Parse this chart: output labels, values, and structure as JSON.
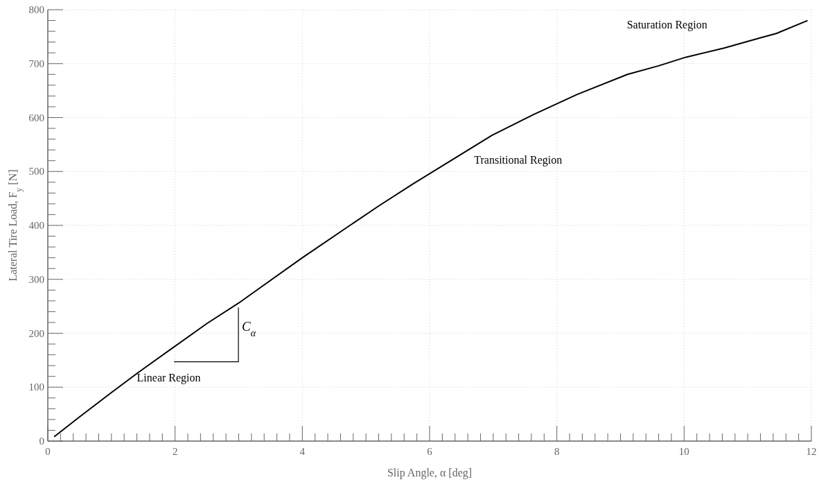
{
  "chart_data": {
    "type": "line",
    "xlabel": "Slip Angle, α [deg]",
    "ylabel": "Lateral Tire Load, F$_{y}$ [N]",
    "x": [
      0.1,
      0.5,
      1.0,
      1.43,
      2.0,
      2.5,
      3.0,
      3.32,
      4.0,
      4.76,
      5.2,
      5.74,
      6.25,
      6.98,
      7.64,
      8.32,
      9.11,
      9.6,
      10.03,
      10.63,
      11.2,
      11.45,
      11.94
    ],
    "series": [
      {
        "color": "#000000",
        "values": [
          8,
          45,
          90,
          128,
          176,
          218,
          256,
          283,
          340,
          401,
          436,
          477,
          514,
          567,
          606,
          643,
          680,
          696,
          712,
          729,
          748,
          756,
          780
        ]
      }
    ],
    "xlim": [
      0,
      12
    ],
    "ylim": [
      0,
      800
    ],
    "xticks": [
      0,
      {
        "value": 0.2,
        "label": null
      },
      {
        "value": 0.4,
        "label": null
      },
      {
        "value": 0.6,
        "label": null
      },
      {
        "value": 0.8,
        "label": null
      },
      {
        "value": 1.0,
        "label": null
      },
      {
        "value": 1.2,
        "label": null
      },
      {
        "value": 1.4,
        "label": null
      },
      {
        "value": 1.6,
        "label": null
      },
      {
        "value": 1.8,
        "label": null
      },
      2,
      {
        "value": 2.2,
        "label": null
      },
      {
        "value": 2.4,
        "label": null
      },
      {
        "value": 2.6,
        "label": null
      },
      {
        "value": 2.8,
        "label": null
      },
      {
        "value": 3.0,
        "label": null
      },
      {
        "value": 3.2,
        "label": null
      },
      {
        "value": 3.4,
        "label": null
      },
      {
        "value": 3.6,
        "label": null
      },
      {
        "value": 3.8,
        "label": null
      },
      4,
      {
        "value": 4.2,
        "label": null
      },
      {
        "value": 4.4,
        "label": null
      },
      {
        "value": 4.6,
        "label": null
      },
      {
        "value": 4.8,
        "label": null
      },
      {
        "value": 5.0,
        "label": null
      },
      {
        "value": 5.2,
        "label": null
      },
      {
        "value": 5.4,
        "label": null
      },
      {
        "value": 5.6,
        "label": null
      },
      {
        "value": 5.8,
        "label": null
      },
      6,
      {
        "value": 6.2,
        "label": null
      },
      {
        "value": 6.4,
        "label": null
      },
      {
        "value": 6.6,
        "label": null
      },
      {
        "value": 6.8,
        "label": null
      },
      {
        "value": 7.0,
        "label": null
      },
      {
        "value": 7.2,
        "label": null
      },
      {
        "value": 7.4,
        "label": null
      },
      {
        "value": 7.6,
        "label": null
      },
      {
        "value": 7.8,
        "label": null
      },
      8,
      {
        "value": 8.2,
        "label": null
      },
      {
        "value": 8.4,
        "label": null
      },
      {
        "value": 8.6,
        "label": null
      },
      {
        "value": 8.8,
        "label": null
      },
      {
        "value": 9.0,
        "label": null
      },
      {
        "value": 9.2,
        "label": null
      },
      {
        "value": 9.4,
        "label": null
      },
      {
        "value": 9.6,
        "label": null
      },
      {
        "value": 9.8,
        "label": null
      },
      10,
      {
        "value": 10.2,
        "label": null
      },
      {
        "value": 10.4,
        "label": null
      },
      {
        "value": 10.6,
        "label": null
      },
      {
        "value": 10.8,
        "label": null
      },
      {
        "value": 11.0,
        "label": null
      },
      {
        "value": 11.2,
        "label": null
      },
      {
        "value": 11.4,
        "label": null
      },
      {
        "value": 11.6,
        "label": null
      },
      {
        "value": 11.8,
        "label": null
      },
      12
    ],
    "yticks": [
      0,
      {
        "value": 20,
        "label": null
      },
      {
        "value": 40,
        "label": null
      },
      {
        "value": 60,
        "label": null
      },
      {
        "value": 80,
        "label": null
      },
      100,
      {
        "value": 120,
        "label": null
      },
      {
        "value": 140,
        "label": null
      },
      {
        "value": 160,
        "label": null
      },
      {
        "value": 180,
        "label": null
      },
      200,
      {
        "value": 220,
        "label": null
      },
      {
        "value": 240,
        "label": null
      },
      {
        "value": 260,
        "label": null
      },
      {
        "value": 280,
        "label": null
      },
      300,
      {
        "value": 320,
        "label": null
      },
      {
        "value": 340,
        "label": null
      },
      {
        "value": 360,
        "label": null
      },
      {
        "value": 380,
        "label": null
      },
      400,
      {
        "value": 420,
        "label": null
      },
      {
        "value": 440,
        "label": null
      },
      {
        "value": 460,
        "label": null
      },
      {
        "value": 480,
        "label": null
      },
      500,
      {
        "value": 520,
        "label": null
      },
      {
        "value": 540,
        "label": null
      },
      {
        "value": 560,
        "label": null
      },
      {
        "value": 580,
        "label": null
      },
      600,
      {
        "value": 620,
        "label": null
      },
      {
        "value": 640,
        "label": null
      },
      {
        "value": 660,
        "label": null
      },
      {
        "value": 680,
        "label": null
      },
      700,
      {
        "value": 720,
        "label": null
      },
      {
        "value": 740,
        "label": null
      },
      {
        "value": 760,
        "label": null
      },
      {
        "value": 780,
        "label": null
      },
      800
    ],
    "grid": true,
    "marker": "none",
    "line_style": "solid",
    "annotations": [
      "Linear Region",
      "Transitional Region",
      "Saturation Region",
      "C$_{α}$"
    ]
  }
}
